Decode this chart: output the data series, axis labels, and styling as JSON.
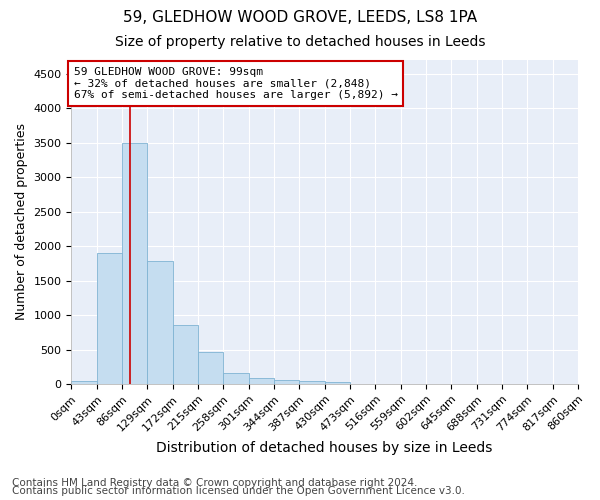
{
  "title1": "59, GLEDHOW WOOD GROVE, LEEDS, LS8 1PA",
  "title2": "Size of property relative to detached houses in Leeds",
  "xlabel": "Distribution of detached houses by size in Leeds",
  "ylabel": "Number of detached properties",
  "footer1": "Contains HM Land Registry data © Crown copyright and database right 2024.",
  "footer2": "Contains public sector information licensed under the Open Government Licence v3.0.",
  "bin_edges": [
    0,
    43,
    86,
    129,
    172,
    215,
    258,
    301,
    344,
    387,
    430,
    473,
    516,
    559,
    602,
    645,
    688,
    731,
    774,
    817,
    860
  ],
  "bin_labels": [
    "0sqm",
    "43sqm",
    "86sqm",
    "129sqm",
    "172sqm",
    "215sqm",
    "258sqm",
    "301sqm",
    "344sqm",
    "387sqm",
    "430sqm",
    "473sqm",
    "516sqm",
    "559sqm",
    "602sqm",
    "645sqm",
    "688sqm",
    "731sqm",
    "774sqm",
    "817sqm",
    "860sqm"
  ],
  "bar_heights": [
    50,
    1900,
    3500,
    1780,
    850,
    460,
    160,
    90,
    60,
    50,
    35,
    0,
    0,
    0,
    0,
    0,
    0,
    0,
    0,
    0
  ],
  "bar_color": "#c5ddf0",
  "bar_edge_color": "#7fb3d3",
  "red_line_x": 99,
  "ylim": [
    0,
    4700
  ],
  "yticks": [
    0,
    500,
    1000,
    1500,
    2000,
    2500,
    3000,
    3500,
    4000,
    4500
  ],
  "annotation_text1": "59 GLEDHOW WOOD GROVE: 99sqm",
  "annotation_text2": "← 32% of detached houses are smaller (2,848)",
  "annotation_text3": "67% of semi-detached houses are larger (5,892) →",
  "annotation_box_facecolor": "#ffffff",
  "annotation_box_edgecolor": "#cc0000",
  "bg_color": "#ffffff",
  "plot_bg_color": "#e8eef8",
  "grid_color": "#ffffff",
  "title1_fontsize": 11,
  "title2_fontsize": 10,
  "xlabel_fontsize": 10,
  "ylabel_fontsize": 9,
  "tick_fontsize": 8,
  "annotation_fontsize": 8,
  "footer_fontsize": 7.5
}
